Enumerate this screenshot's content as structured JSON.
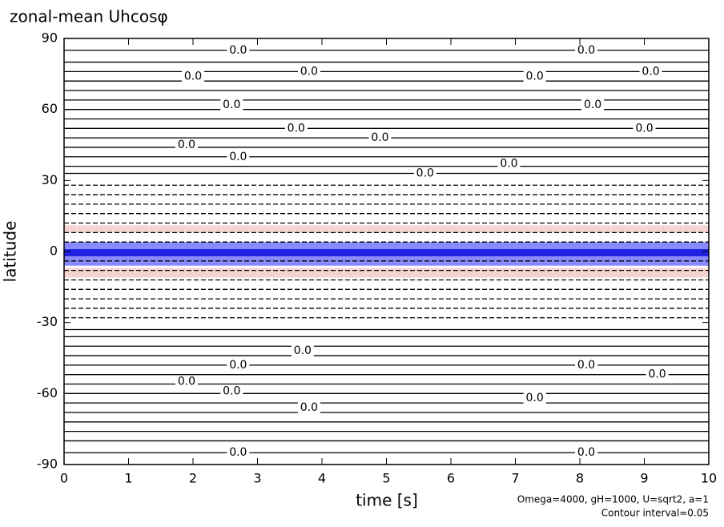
{
  "chart_data": {
    "type": "contour",
    "title": "zonal-mean Uhcosφ",
    "x_label": "time [s]",
    "y_label": "latitude",
    "notes": [
      "Omega=4000, gH=1000, U=sqrt2, a=1",
      "Contour interval=0.05"
    ],
    "xlim": [
      0,
      10
    ],
    "xticks": [
      0,
      1,
      2,
      3,
      4,
      5,
      6,
      7,
      8,
      9,
      10
    ],
    "ylim": [
      -90,
      90
    ],
    "yticks": [
      -90,
      -60,
      -30,
      0,
      30,
      60,
      90
    ],
    "line_color": "#000000",
    "contour_lines": [
      85,
      80,
      76,
      72,
      68,
      64,
      60,
      56,
      52,
      48,
      44,
      40,
      36,
      33,
      28,
      24,
      20,
      16,
      12,
      8,
      4,
      -4,
      -8,
      -12,
      -16,
      -20,
      -24,
      -28,
      -33,
      -36,
      -40,
      -44,
      -48,
      -52,
      -56,
      -60,
      -64,
      -68,
      -72,
      -76,
      -80,
      -85
    ],
    "bands": [
      {
        "ylim": [
          -6,
          4
        ],
        "color": "#8a8aff"
      },
      {
        "ylim": [
          -2,
          1
        ],
        "color": "#2020e0"
      },
      {
        "ylim": [
          -11,
          -7
        ],
        "color": "#f4d4d0"
      },
      {
        "ylim": [
          8,
          11
        ],
        "color": "#f4d4d0"
      }
    ],
    "contour_labels": [
      {
        "x": 2.7,
        "y": 85,
        "value": 0,
        "label": "0.0"
      },
      {
        "x": 8.1,
        "y": 85,
        "value": 0,
        "label": "0.0"
      },
      {
        "x": 2.0,
        "y": 74,
        "value": 0,
        "label": "0.0"
      },
      {
        "x": 3.8,
        "y": 76,
        "value": 0,
        "label": "0.0"
      },
      {
        "x": 7.3,
        "y": 74,
        "value": 0,
        "label": "0.0"
      },
      {
        "x": 9.1,
        "y": 76,
        "value": 0,
        "label": "0.0"
      },
      {
        "x": 2.6,
        "y": 62,
        "value": 0,
        "label": "0.0"
      },
      {
        "x": 8.2,
        "y": 62,
        "value": 0,
        "label": "0.0"
      },
      {
        "x": 3.6,
        "y": 52,
        "value": 0,
        "label": "0.0"
      },
      {
        "x": 9.0,
        "y": 52,
        "value": 0,
        "label": "0.0"
      },
      {
        "x": 4.9,
        "y": 48,
        "value": 0,
        "label": "0.0"
      },
      {
        "x": 1.9,
        "y": 45,
        "value": 0,
        "label": "0.0"
      },
      {
        "x": 2.7,
        "y": 40,
        "value": 0,
        "label": "0.0"
      },
      {
        "x": 5.6,
        "y": 33,
        "value": 0,
        "label": "0.0"
      },
      {
        "x": 6.9,
        "y": 37,
        "value": 0,
        "label": "0.0"
      },
      {
        "x": 2.7,
        "y": -48,
        "value": 0,
        "label": "0.0"
      },
      {
        "x": 8.1,
        "y": -48,
        "value": 0,
        "label": "0.0"
      },
      {
        "x": 3.7,
        "y": -42,
        "value": 0,
        "label": "0.0"
      },
      {
        "x": 1.9,
        "y": -55,
        "value": 0,
        "label": "0.0"
      },
      {
        "x": 9.2,
        "y": -52,
        "value": 0,
        "label": "0.0"
      },
      {
        "x": 2.6,
        "y": -59,
        "value": 0,
        "label": "0.0"
      },
      {
        "x": 3.8,
        "y": -66,
        "value": 0,
        "label": "0.0"
      },
      {
        "x": 7.3,
        "y": -62,
        "value": 0,
        "label": "0.0"
      },
      {
        "x": 2.7,
        "y": -85,
        "value": 0,
        "label": "0.0"
      },
      {
        "x": 8.1,
        "y": -85,
        "value": 0,
        "label": "0.0"
      }
    ]
  }
}
